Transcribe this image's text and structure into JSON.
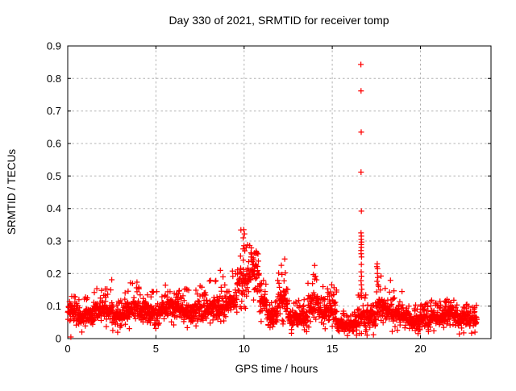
{
  "chart_data": {
    "type": "scatter",
    "title": "Day 330 of 2021, SRMTID for receiver tomp",
    "xlabel": "GPS time / hours",
    "ylabel": "SRMTID / TECUs",
    "xlim": [
      0,
      24
    ],
    "ylim": [
      0,
      0.9
    ],
    "xticks": [
      0,
      5,
      10,
      15,
      20
    ],
    "yticks": [
      0,
      0.1,
      0.2,
      0.3,
      0.4,
      0.5,
      0.6,
      0.7,
      0.8,
      0.9
    ],
    "grid": true,
    "legend": "none",
    "marker": {
      "shape": "plus",
      "size": 7
    },
    "colors": {
      "marker": "#ff0000",
      "frame": "#000000",
      "grid": "#b4b4b4",
      "text": "#000000",
      "background": "#ffffff"
    },
    "seed": 330,
    "density_per_hour": 95,
    "x_data_range": [
      0,
      23.2
    ],
    "envelope": [
      [
        0.0,
        0.5,
        0.05,
        0.11,
        0.135
      ],
      [
        0.5,
        1.5,
        0.035,
        0.1,
        0.13
      ],
      [
        1.5,
        2.5,
        0.05,
        0.12,
        0.19
      ],
      [
        2.5,
        3.2,
        0.035,
        0.1,
        0.13
      ],
      [
        3.2,
        4.5,
        0.05,
        0.13,
        0.175
      ],
      [
        4.5,
        5.2,
        0.04,
        0.11,
        0.15
      ],
      [
        5.2,
        6.3,
        0.06,
        0.13,
        0.17
      ],
      [
        6.3,
        7.2,
        0.05,
        0.12,
        0.16
      ],
      [
        7.2,
        8.2,
        0.05,
        0.13,
        0.18
      ],
      [
        8.2,
        9.0,
        0.06,
        0.14,
        0.21
      ],
      [
        9.0,
        9.6,
        0.07,
        0.16,
        0.22
      ],
      [
        9.6,
        10.15,
        0.1,
        0.24,
        0.335
      ],
      [
        10.15,
        10.85,
        0.13,
        0.26,
        0.3
      ],
      [
        10.85,
        11.3,
        0.06,
        0.16,
        0.19
      ],
      [
        11.3,
        11.9,
        0.03,
        0.11,
        0.14
      ],
      [
        11.9,
        12.5,
        0.06,
        0.17,
        0.245
      ],
      [
        12.5,
        13.6,
        0.03,
        0.1,
        0.13
      ],
      [
        13.6,
        14.25,
        0.05,
        0.15,
        0.225
      ],
      [
        14.25,
        14.75,
        0.045,
        0.12,
        0.16
      ],
      [
        14.75,
        15.25,
        0.05,
        0.13,
        0.17
      ],
      [
        15.25,
        16.45,
        0.02,
        0.065,
        0.09
      ],
      [
        16.45,
        16.95,
        0.03,
        0.1,
        0.155
      ],
      [
        16.95,
        17.45,
        0.03,
        0.1,
        0.14
      ],
      [
        17.45,
        17.85,
        0.05,
        0.14,
        0.23
      ],
      [
        17.85,
        18.35,
        0.05,
        0.13,
        0.185
      ],
      [
        18.35,
        19.3,
        0.04,
        0.11,
        0.15
      ],
      [
        19.3,
        20.6,
        0.025,
        0.085,
        0.11
      ],
      [
        20.6,
        21.4,
        0.04,
        0.1,
        0.12
      ],
      [
        21.4,
        22.1,
        0.05,
        0.11,
        0.14
      ],
      [
        22.1,
        23.2,
        0.03,
        0.09,
        0.11
      ]
    ],
    "outliers": [
      [
        0.18,
        0.005
      ],
      [
        9.98,
        0.335
      ],
      [
        10.02,
        0.322
      ],
      [
        9.95,
        0.31
      ],
      [
        12.3,
        0.245
      ],
      [
        14.0,
        0.225
      ],
      [
        16.62,
        0.843
      ],
      [
        16.63,
        0.762
      ],
      [
        16.64,
        0.635
      ],
      [
        16.63,
        0.512
      ],
      [
        16.65,
        0.392
      ],
      [
        16.63,
        0.325
      ],
      [
        16.65,
        0.315
      ],
      [
        16.64,
        0.305
      ],
      [
        16.66,
        0.297
      ],
      [
        16.64,
        0.289
      ],
      [
        16.65,
        0.281
      ],
      [
        16.63,
        0.271
      ],
      [
        16.64,
        0.261
      ],
      [
        16.66,
        0.251
      ],
      [
        16.65,
        0.228
      ],
      [
        16.64,
        0.205
      ],
      [
        16.66,
        0.192
      ],
      [
        16.63,
        0.178
      ],
      [
        16.65,
        0.165
      ],
      [
        16.67,
        0.152
      ],
      [
        16.64,
        0.14
      ],
      [
        16.66,
        0.128
      ],
      [
        17.55,
        0.23
      ],
      [
        17.57,
        0.215
      ],
      [
        17.56,
        0.2
      ],
      [
        17.58,
        0.188
      ],
      [
        17.54,
        0.176
      ],
      [
        17.6,
        0.165
      ]
    ]
  }
}
